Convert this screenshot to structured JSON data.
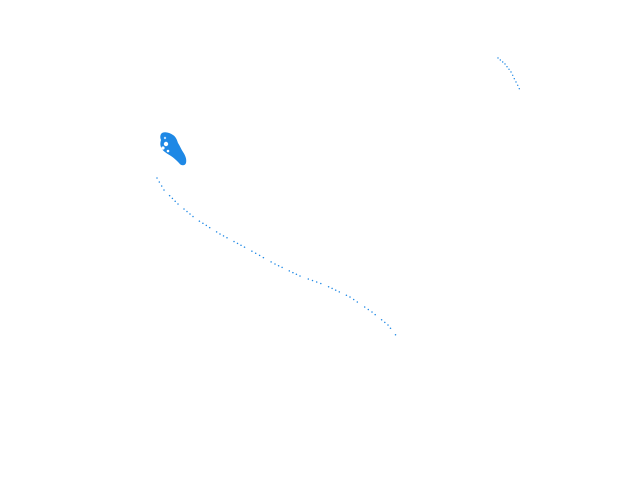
{
  "canvas": {
    "background_color": "#ffffff"
  },
  "ink": {
    "color": "#1e88e5",
    "marks": [
      {
        "name": "blue-blob-mark",
        "kind": "filled-shape"
      },
      {
        "name": "long-diagonal-dotted-stroke",
        "kind": "dotted-stroke"
      },
      {
        "name": "small-top-right-dotted-stroke",
        "kind": "dotted-stroke"
      }
    ]
  }
}
